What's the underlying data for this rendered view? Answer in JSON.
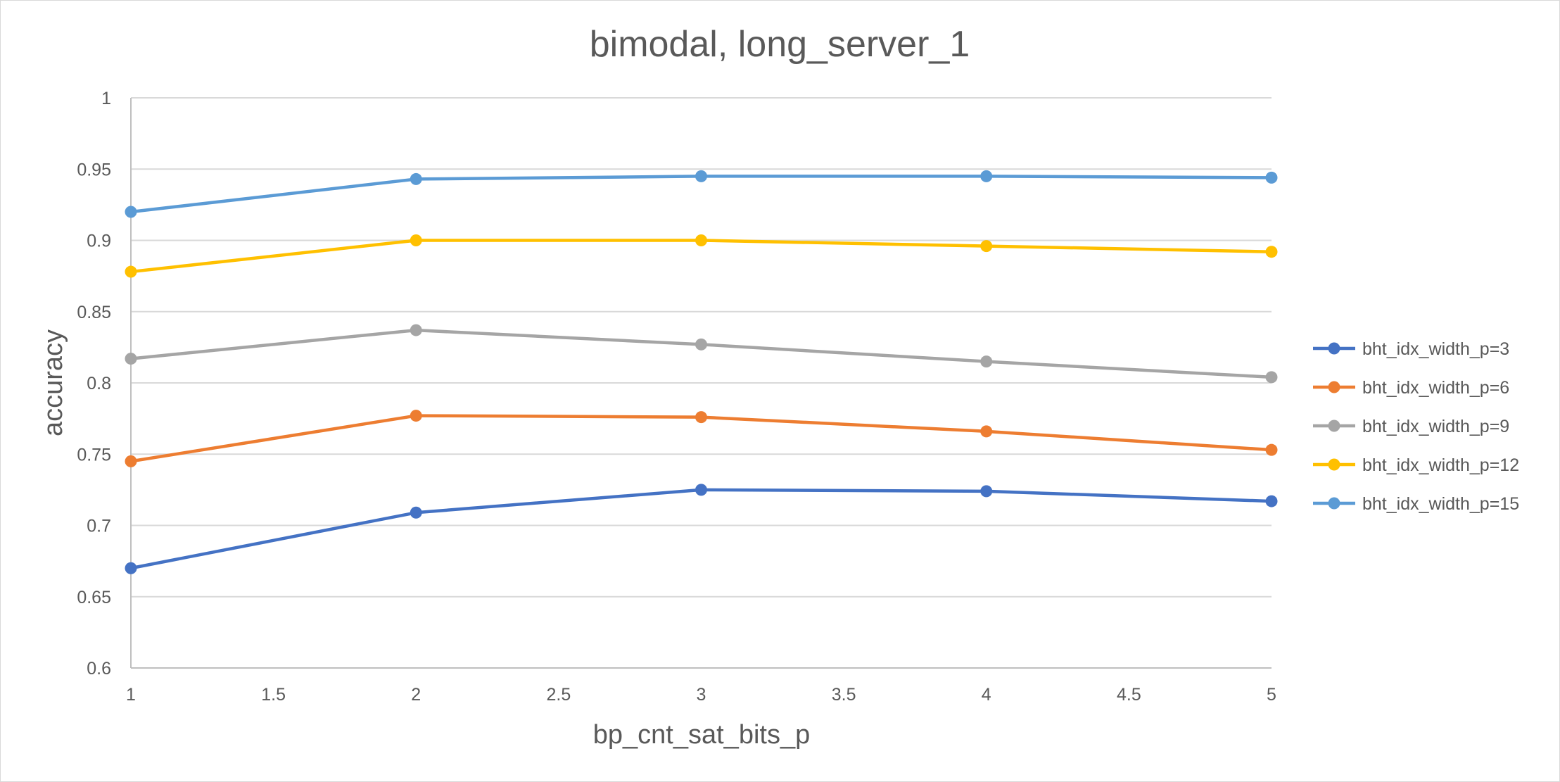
{
  "chart_data": {
    "type": "line",
    "title": "bimodal, long_server_1",
    "xlabel": "bp_cnt_sat_bits_p",
    "ylabel": "accuracy",
    "xlim": [
      1,
      5
    ],
    "ylim": [
      0.6,
      1
    ],
    "xticks": [
      1,
      1.5,
      2,
      2.5,
      3,
      3.5,
      4,
      4.5,
      5
    ],
    "xtick_labels": [
      "1",
      "1.5",
      "2",
      "2.5",
      "3",
      "3.5",
      "4",
      "4.5",
      "5"
    ],
    "yticks": [
      0.6,
      0.65,
      0.7,
      0.75,
      0.8,
      0.85,
      0.9,
      0.95,
      1
    ],
    "ytick_labels": [
      "0.6",
      "0.65",
      "0.7",
      "0.75",
      "0.8",
      "0.85",
      "0.9",
      "0.95",
      "1"
    ],
    "grid": "horizontal",
    "legend_position": "right",
    "x": [
      1,
      2,
      3,
      4,
      5
    ],
    "series": [
      {
        "name": "bht_idx_width_p=3",
        "color": "#4472C4",
        "values": [
          0.67,
          0.709,
          0.725,
          0.724,
          0.717
        ]
      },
      {
        "name": "bht_idx_width_p=6",
        "color": "#ED7D31",
        "values": [
          0.745,
          0.777,
          0.776,
          0.766,
          0.753
        ]
      },
      {
        "name": "bht_idx_width_p=9",
        "color": "#A5A5A5",
        "values": [
          0.817,
          0.837,
          0.827,
          0.815,
          0.804
        ]
      },
      {
        "name": "bht_idx_width_p=12",
        "color": "#FFC000",
        "values": [
          0.878,
          0.9,
          0.9,
          0.896,
          0.892
        ]
      },
      {
        "name": "bht_idx_width_p=15",
        "color": "#5B9BD5",
        "values": [
          0.92,
          0.943,
          0.945,
          0.945,
          0.944
        ]
      }
    ]
  }
}
